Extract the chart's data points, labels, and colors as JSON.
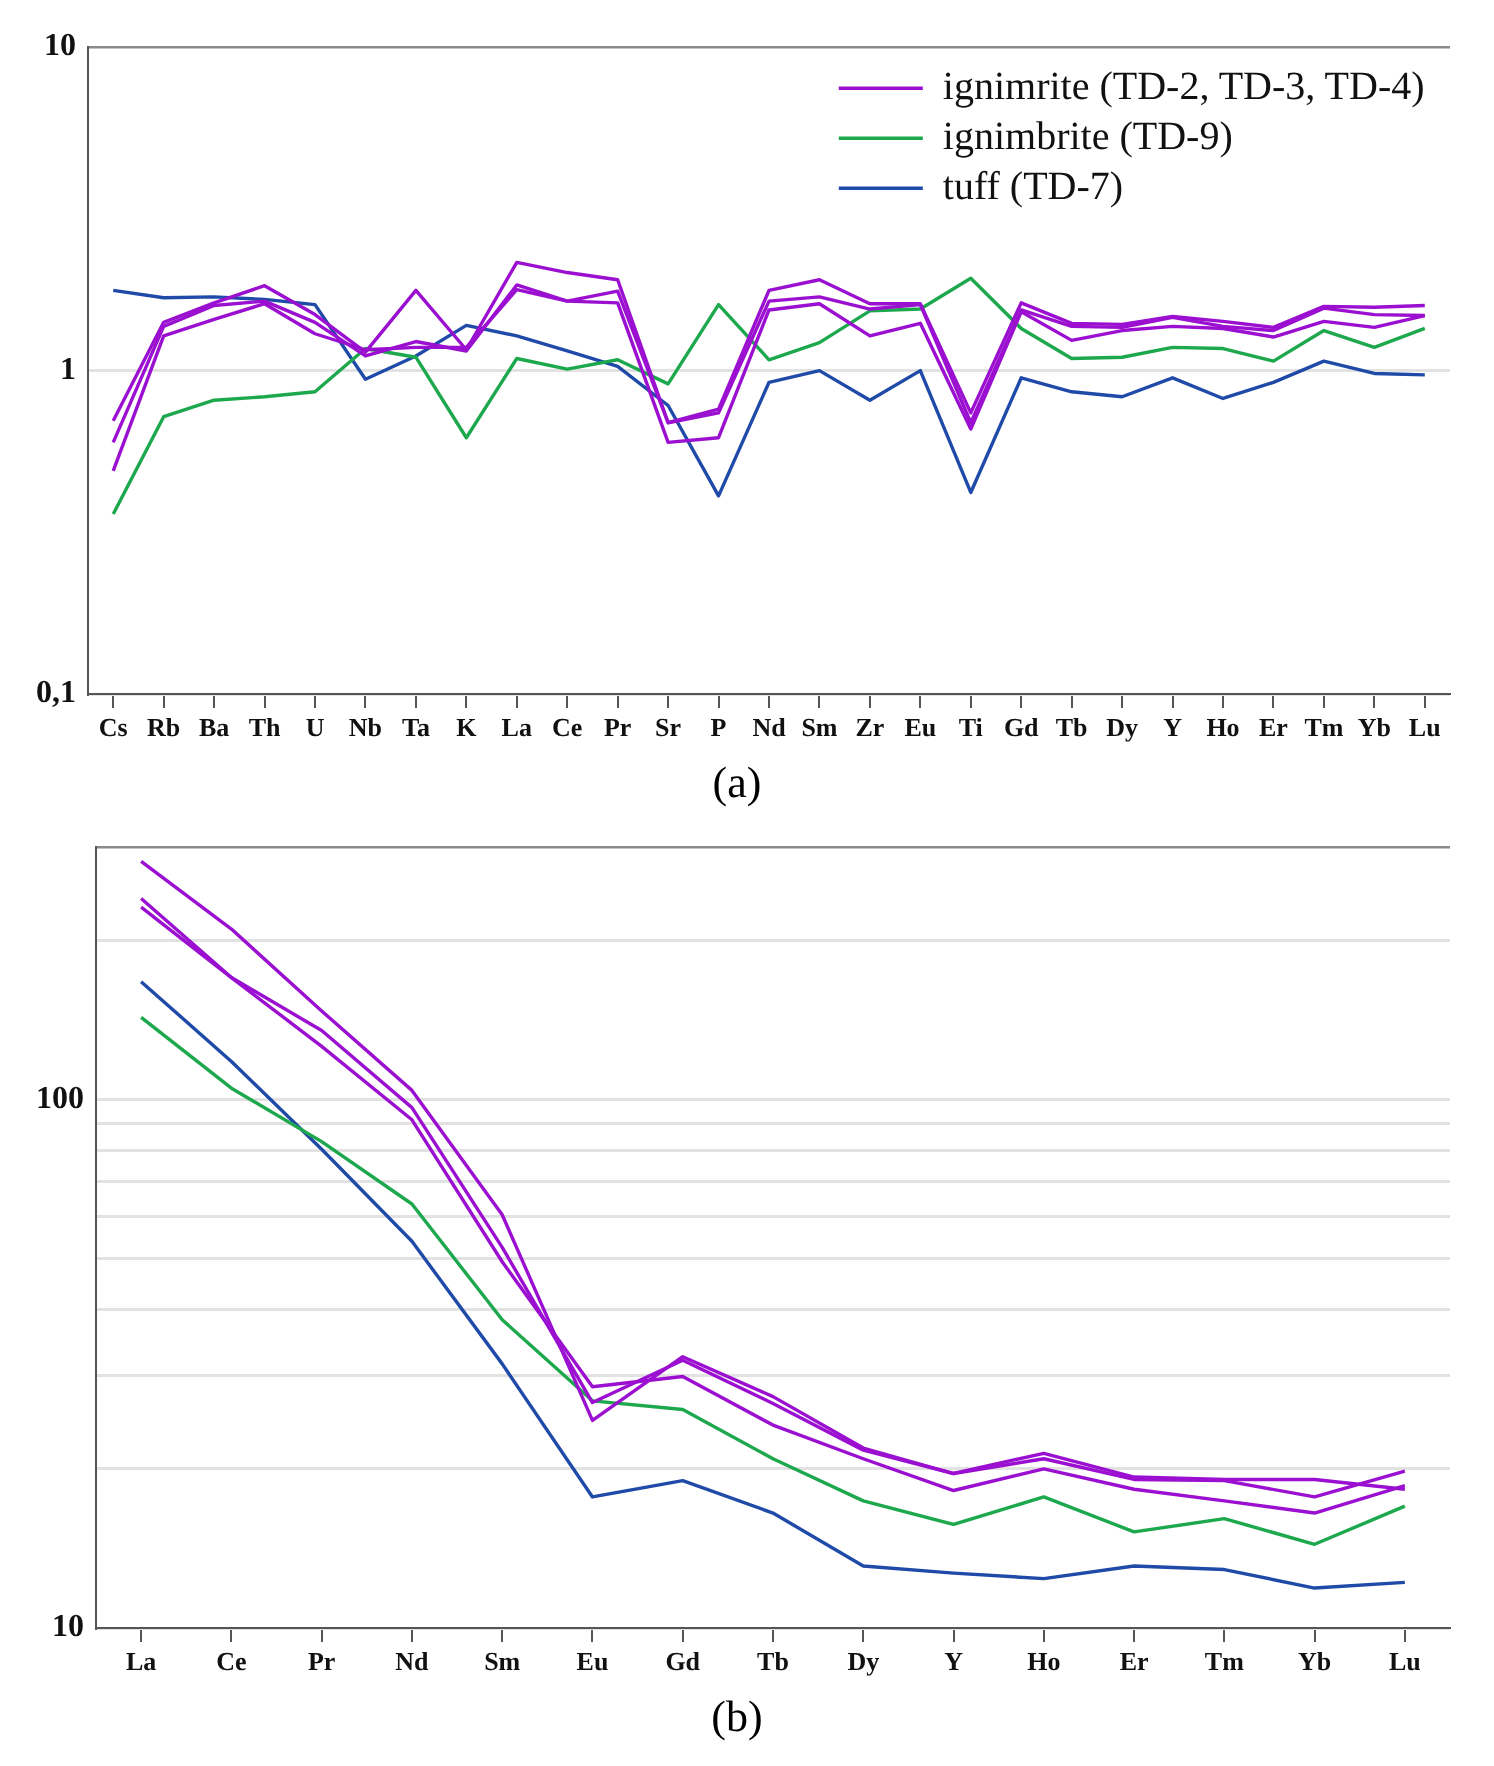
{
  "chart_data": [
    {
      "type": "line",
      "title": "(a)",
      "categories": [
        "Cs",
        "Rb",
        "Ba",
        "Th",
        "U",
        "Nb",
        "Ta",
        "K",
        "La",
        "Ce",
        "Pr",
        "Sr",
        "P",
        "Nd",
        "Sm",
        "Zr",
        "Eu",
        "Ti",
        "Gd",
        "Tb",
        "Dy",
        "Y",
        "Ho",
        "Er",
        "Tm",
        "Yb",
        "Lu"
      ],
      "series": [
        {
          "name": "ignimrite (TD-2, TD-3, TD-4)",
          "color": "#9b10d0",
          "values": [
            0.7,
            1.41,
            1.62,
            1.83,
            1.49,
            1.14,
            1.77,
            1.16,
            2.16,
            2.01,
            1.91,
            0.69,
            0.76,
            1.77,
            1.91,
            1.61,
            1.61,
            0.74,
            1.62,
            1.4,
            1.39,
            1.47,
            1.42,
            1.36,
            1.58,
            1.57,
            1.59
          ]
        },
        {
          "color": "#9b10d0",
          "values": [
            0.6,
            1.37,
            1.59,
            1.64,
            1.41,
            1.11,
            1.23,
            1.15,
            1.84,
            1.64,
            1.76,
            0.69,
            0.74,
            1.64,
            1.69,
            1.55,
            1.6,
            0.69,
            1.54,
            1.37,
            1.36,
            1.46,
            1.37,
            1.33,
            1.56,
            1.49,
            1.48
          ]
        },
        {
          "color": "#9b10d0",
          "values": [
            0.49,
            1.28,
            1.44,
            1.61,
            1.3,
            1.16,
            1.18,
            1.18,
            1.78,
            1.64,
            1.62,
            0.6,
            0.62,
            1.54,
            1.61,
            1.28,
            1.4,
            0.66,
            1.52,
            1.24,
            1.33,
            1.37,
            1.35,
            1.27,
            1.42,
            1.36,
            1.48
          ]
        },
        {
          "name": "ignimbrite (TD-9)",
          "color": "#1ea84e",
          "values": [
            0.36,
            0.72,
            0.81,
            0.83,
            0.86,
            1.17,
            1.1,
            0.62,
            1.09,
            1.01,
            1.08,
            0.91,
            1.6,
            1.08,
            1.22,
            1.53,
            1.55,
            1.93,
            1.35,
            1.09,
            1.1,
            1.18,
            1.17,
            1.07,
            1.33,
            1.18,
            1.35
          ]
        },
        {
          "name": "tuff (TD-7)",
          "color": "#1f4aa8",
          "values": [
            1.77,
            1.68,
            1.69,
            1.66,
            1.6,
            0.94,
            1.11,
            1.38,
            1.28,
            1.15,
            1.03,
            0.78,
            0.41,
            0.92,
            1.0,
            0.81,
            1.0,
            0.42,
            0.95,
            0.86,
            0.83,
            0.95,
            0.82,
            0.92,
            1.07,
            0.98,
            0.97
          ]
        }
      ],
      "ylim": [
        0.1,
        10
      ],
      "yticks": [
        {
          "value": 0.1,
          "label": "0,1"
        },
        1,
        10
      ],
      "log": true,
      "grid": "y",
      "legend": "top right"
    },
    {
      "type": "line",
      "title": "(b)",
      "categories": [
        "La",
        "Ce",
        "Pr",
        "Nd",
        "Sm",
        "Eu",
        "Gd",
        "Tb",
        "Dy",
        "Y",
        "Ho",
        "Er",
        "Tm",
        "Yb",
        "Lu"
      ],
      "series": [
        {
          "color": "#9b10d0",
          "values": [
            282,
            210,
            147,
            104,
            60.5,
            24.7,
            32.6,
            27.4,
            21.9,
            19.6,
            21.4,
            19.3,
            19.1,
            19.1,
            18.3
          ]
        },
        {
          "color": "#9b10d0",
          "values": [
            240,
            170,
            135,
            96.5,
            52.5,
            26.7,
            32.1,
            26.6,
            21.7,
            19.6,
            20.9,
            19.1,
            19.0,
            17.7,
            19.8
          ]
        },
        {
          "color": "#9b10d0",
          "values": [
            231,
            170,
            126,
            91.5,
            49.3,
            28.6,
            29.9,
            24.2,
            20.9,
            18.2,
            20.0,
            18.3,
            17.4,
            16.5,
            18.6
          ]
        },
        {
          "color": "#1ea84e",
          "values": [
            143,
            105,
            83.2,
            63.4,
            38.3,
            26.9,
            25.9,
            20.9,
            17.4,
            15.7,
            17.7,
            15.2,
            16.1,
            14.4,
            17.0
          ]
        },
        {
          "color": "#1f4aa8",
          "values": [
            167,
            118,
            80.5,
            53.9,
            31.6,
            17.7,
            19.0,
            16.5,
            13.1,
            12.7,
            12.4,
            13.1,
            12.9,
            11.9,
            12.2
          ]
        }
      ],
      "ylim": [
        10,
        300
      ],
      "yticks": [
        10,
        {
          "value": 20,
          "label": null
        },
        {
          "value": 30,
          "label": null
        },
        {
          "value": 40,
          "label": null
        },
        {
          "value": 50,
          "label": null
        },
        {
          "value": 60,
          "label": null
        },
        {
          "value": 70,
          "label": null
        },
        {
          "value": 80,
          "label": null
        },
        {
          "value": 90,
          "label": null
        },
        100,
        {
          "value": 200,
          "label": null
        },
        {
          "value": 300,
          "label": null
        }
      ],
      "log": true,
      "grid": "y"
    }
  ]
}
